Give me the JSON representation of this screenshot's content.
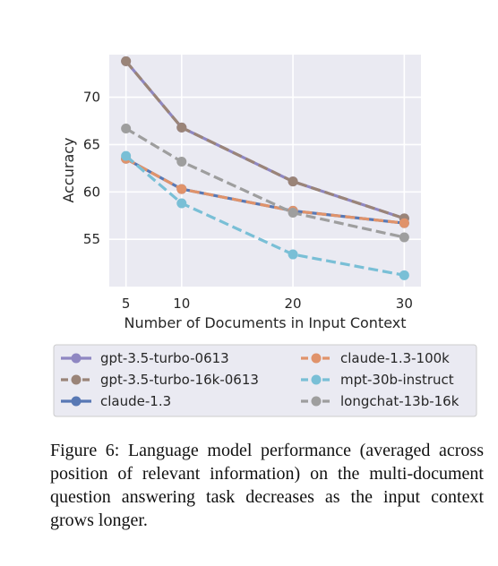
{
  "chart_data": {
    "type": "line",
    "x": [
      5,
      10,
      20,
      30
    ],
    "xlabel": "Number of Documents in Input Context",
    "ylabel": "Accuracy",
    "xlim": [
      3.5,
      31.5
    ],
    "ylim": [
      50,
      74.5
    ],
    "xticks": [
      "5",
      "10",
      "20",
      "30"
    ],
    "yticks": [
      "55",
      "60",
      "65",
      "70"
    ],
    "grid": true,
    "legend_position": "below",
    "series": [
      {
        "name": "gpt-3.5-turbo-0613",
        "values": [
          73.8,
          66.8,
          61.1,
          57.2
        ],
        "color": "#8f87c2",
        "dash": "solid"
      },
      {
        "name": "gpt-3.5-turbo-16k-0613",
        "values": [
          73.8,
          66.8,
          61.1,
          57.2
        ],
        "color": "#9a8478",
        "dash": "dashed"
      },
      {
        "name": "claude-1.3",
        "values": [
          63.5,
          60.3,
          58.0,
          56.7
        ],
        "color": "#5878b4",
        "dash": "solid"
      },
      {
        "name": "claude-1.3-100k",
        "values": [
          63.5,
          60.3,
          58.0,
          56.7
        ],
        "color": "#e0936b",
        "dash": "dashed"
      },
      {
        "name": "mpt-30b-instruct",
        "values": [
          63.8,
          58.8,
          53.4,
          51.2
        ],
        "color": "#79bfd6",
        "dash": "dashed"
      },
      {
        "name": "longchat-13b-16k",
        "values": [
          66.7,
          63.2,
          57.8,
          55.2
        ],
        "color": "#9e9e9e",
        "dash": "dashed"
      }
    ]
  },
  "caption": {
    "text": "Figure 6: Language model performance (averaged across position of relevant information) on the multi-document question answering task decreases as the input context grows longer."
  }
}
